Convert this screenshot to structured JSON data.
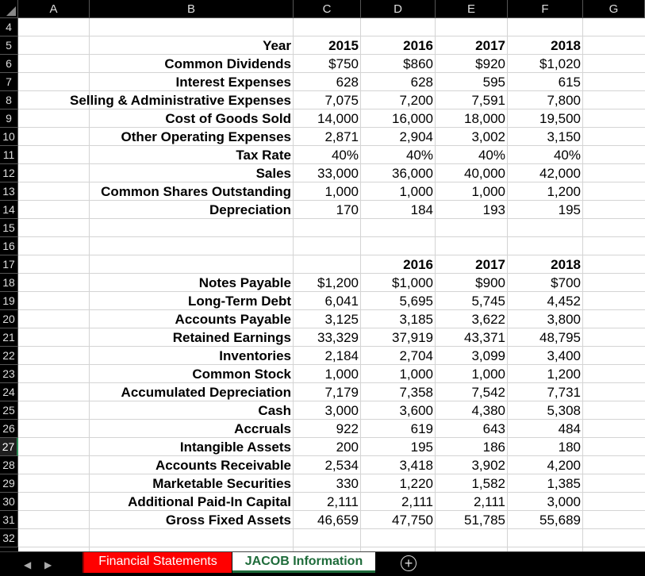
{
  "columns": [
    "A",
    "B",
    "C",
    "D",
    "E",
    "F",
    "G"
  ],
  "rows": [
    "4",
    "5",
    "6",
    "7",
    "8",
    "9",
    "10",
    "11",
    "12",
    "13",
    "14",
    "15",
    "16",
    "17",
    "18",
    "19",
    "20",
    "21",
    "22",
    "23",
    "24",
    "25",
    "26",
    "27",
    "28",
    "29",
    "30",
    "31",
    "32"
  ],
  "active_row": "27",
  "table1": {
    "header": {
      "label": "Year",
      "values": [
        "2015",
        "2016",
        "2017",
        "2018"
      ]
    },
    "rows": [
      {
        "label": "Common Dividends",
        "values": [
          "$750",
          "$860",
          "$920",
          "$1,020"
        ]
      },
      {
        "label": "Interest Expenses",
        "values": [
          "628",
          "628",
          "595",
          "615"
        ]
      },
      {
        "label": "Selling & Administrative Expenses",
        "values": [
          "7,075",
          "7,200",
          "7,591",
          "7,800"
        ]
      },
      {
        "label": "Cost of Goods Sold",
        "values": [
          "14,000",
          "16,000",
          "18,000",
          "19,500"
        ]
      },
      {
        "label": "Other Operating Expenses",
        "values": [
          "2,871",
          "2,904",
          "3,002",
          "3,150"
        ]
      },
      {
        "label": "Tax Rate",
        "values": [
          "40%",
          "40%",
          "40%",
          "40%"
        ]
      },
      {
        "label": "Sales",
        "values": [
          "33,000",
          "36,000",
          "40,000",
          "42,000"
        ]
      },
      {
        "label": "Common Shares Outstanding",
        "values": [
          "1,000",
          "1,000",
          "1,000",
          "1,200"
        ]
      },
      {
        "label": "Depreciation",
        "values": [
          "170",
          "184",
          "193",
          "195"
        ]
      }
    ]
  },
  "table2": {
    "header": {
      "values": [
        "",
        "2016",
        "2017",
        "2018"
      ]
    },
    "rows": [
      {
        "label": "Notes Payable",
        "values": [
          "$1,200",
          "$1,000",
          "$900",
          "$700"
        ]
      },
      {
        "label": "Long-Term Debt",
        "values": [
          "6,041",
          "5,695",
          "5,745",
          "4,452"
        ]
      },
      {
        "label": "Accounts Payable",
        "values": [
          "3,125",
          "3,185",
          "3,622",
          "3,800"
        ]
      },
      {
        "label": "Retained Earnings",
        "values": [
          "33,329",
          "37,919",
          "43,371",
          "48,795"
        ]
      },
      {
        "label": "Inventories",
        "values": [
          "2,184",
          "2,704",
          "3,099",
          "3,400"
        ]
      },
      {
        "label": "Common Stock",
        "values": [
          "1,000",
          "1,000",
          "1,000",
          "1,200"
        ]
      },
      {
        "label": "Accumulated Depreciation",
        "values": [
          "7,179",
          "7,358",
          "7,542",
          "7,731"
        ]
      },
      {
        "label": "Cash",
        "values": [
          "3,000",
          "3,600",
          "4,380",
          "5,308"
        ]
      },
      {
        "label": "Accruals",
        "values": [
          "922",
          "619",
          "643",
          "484"
        ]
      },
      {
        "label": "Intangible Assets",
        "values": [
          "200",
          "195",
          "186",
          "180"
        ]
      },
      {
        "label": "Accounts Receivable",
        "values": [
          "2,534",
          "3,418",
          "3,902",
          "4,200"
        ]
      },
      {
        "label": "Marketable Securities",
        "values": [
          "330",
          "1,220",
          "1,582",
          "1,385"
        ]
      },
      {
        "label": "Additional Paid-In Capital",
        "values": [
          "2,111",
          "2,111",
          "2,111",
          "3,000"
        ]
      },
      {
        "label": "Gross Fixed Assets",
        "values": [
          "46,659",
          "47,750",
          "51,785",
          "55,689"
        ]
      }
    ]
  },
  "tabs": [
    {
      "label": "Financial Statements",
      "color": "#ff0000"
    },
    {
      "label": "JACOB Information",
      "active": true
    }
  ],
  "add_sheet_icon": "plus-circle-icon",
  "nav_icons": [
    "prev-sheet-icon",
    "next-sheet-icon"
  ]
}
